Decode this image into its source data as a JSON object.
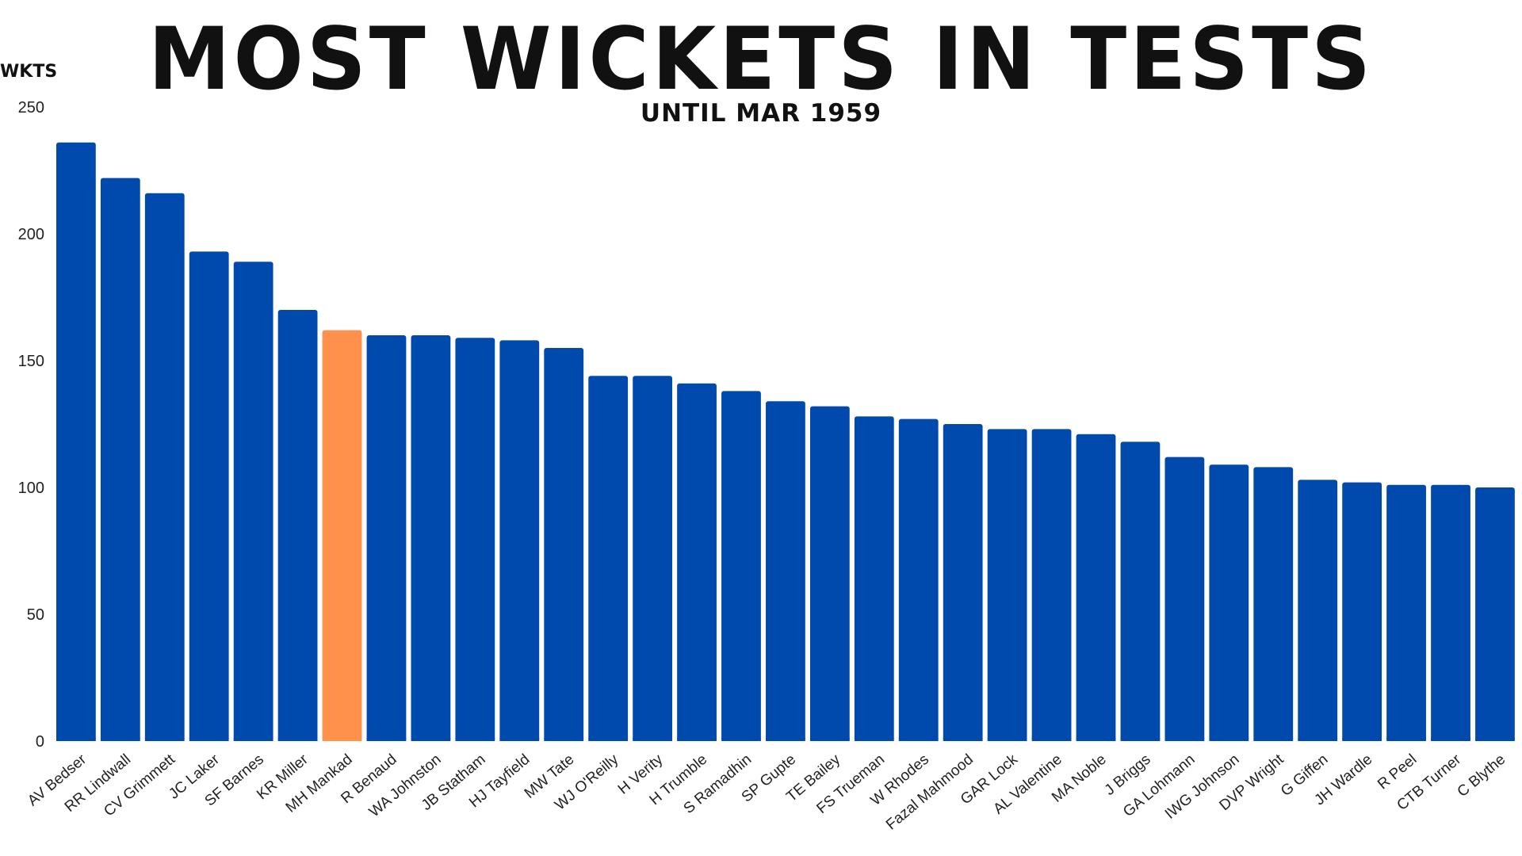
{
  "chart_data": {
    "type": "bar",
    "title": "MOST WICKETS IN TESTS",
    "subtitle": "UNTIL MAR 1959",
    "ylabel": "WKTS",
    "xlabel": "",
    "ylim": [
      0,
      250
    ],
    "yticks": [
      0,
      50,
      100,
      150,
      200,
      250
    ],
    "grid": false,
    "legend": "none",
    "colors": {
      "default": "#004AAD",
      "highlight": "#FF914D"
    },
    "highlight_category": "MH Mankad",
    "categories": [
      "AV Bedser",
      "RR Lindwall",
      "CV Grimmett",
      "JC Laker",
      "SF Barnes",
      "KR Miller",
      "MH Mankad",
      "R Benaud",
      "WA Johnston",
      "JB Statham",
      "HJ Tayfield",
      "MW Tate",
      "WJ O'Reilly",
      "H Verity",
      "H Trumble",
      "S Ramadhin",
      "SP Gupte",
      "TE Bailey",
      "FS Trueman",
      "W Rhodes",
      "Fazal Mahmood",
      "GAR Lock",
      "AL Valentine",
      "MA Noble",
      "J Briggs",
      "GA Lohmann",
      "IWG Johnson",
      "DVP Wright",
      "G Giffen",
      "JH Wardle",
      "R Peel",
      "CTB Turner",
      "C Blythe"
    ],
    "values": [
      236,
      222,
      216,
      193,
      189,
      170,
      162,
      160,
      160,
      159,
      158,
      155,
      144,
      144,
      141,
      138,
      134,
      132,
      128,
      127,
      125,
      123,
      123,
      121,
      118,
      112,
      109,
      108,
      103,
      102,
      101,
      101,
      100
    ]
  }
}
